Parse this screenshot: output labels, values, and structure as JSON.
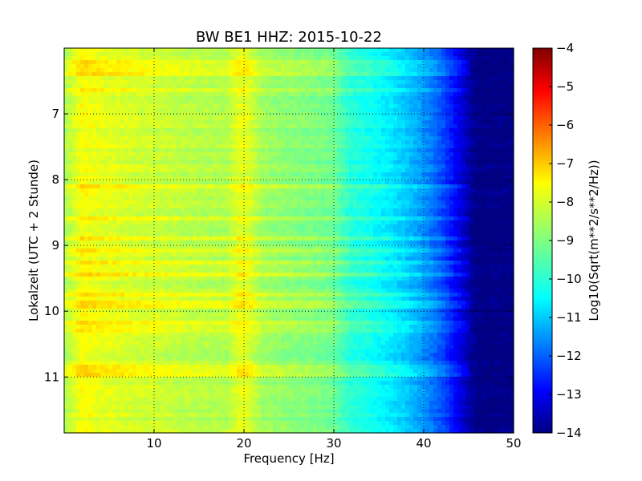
{
  "chart_data": {
    "type": "heatmap",
    "title": "BW BE1 HHZ: 2015-10-22",
    "xlabel": "Frequency [Hz]",
    "ylabel": "Lokalzeit (UTC + 2 Stunde)",
    "xlim": [
      0,
      50
    ],
    "ylim": [
      6.0,
      11.85
    ],
    "y_inverted": true,
    "x_ticks": [
      10,
      20,
      30,
      40,
      50
    ],
    "y_ticks": [
      7,
      8,
      9,
      10,
      11
    ],
    "grid": true,
    "colormap": "jet",
    "colorbar": {
      "label": "Log10(Sqrt(m**2/s**2/Hz))",
      "range": [
        -14,
        -4
      ],
      "ticks": [
        -4,
        -5,
        -6,
        -7,
        -8,
        -9,
        -10,
        -11,
        -12,
        -13,
        -14
      ]
    },
    "spectrum_profile": {
      "frequency_hz": [
        0,
        1,
        2,
        3,
        4,
        6,
        8,
        10,
        12,
        14,
        16,
        18,
        19.5,
        20.5,
        22,
        24,
        26,
        28,
        30,
        31,
        32,
        34,
        36,
        38,
        40,
        42,
        44,
        45,
        46,
        48,
        50
      ],
      "log10_amplitude": [
        -8.6,
        -8.2,
        -7.8,
        -7.9,
        -8.0,
        -8.1,
        -8.2,
        -8.25,
        -8.35,
        -8.45,
        -8.5,
        -8.55,
        -8.0,
        -8.1,
        -8.7,
        -8.85,
        -8.95,
        -9.05,
        -9.2,
        -9.6,
        -9.9,
        -10.1,
        -10.4,
        -10.8,
        -11.3,
        -12.0,
        -13.0,
        -13.6,
        -14.0,
        -14.0,
        -14.0
      ]
    },
    "bright_rows_local_time": [
      6.2,
      6.27,
      6.33,
      6.4,
      6.65,
      8.1,
      8.6,
      8.88,
      9.1,
      9.25,
      9.43,
      9.73,
      9.9,
      10.18,
      10.27,
      10.87,
      10.97
    ],
    "colors": {
      "jet": [
        "#000080",
        "#0000ff",
        "#0080ff",
        "#00ffff",
        "#80ff80",
        "#ffff00",
        "#ff8000",
        "#ff0000",
        "#800000"
      ]
    }
  }
}
